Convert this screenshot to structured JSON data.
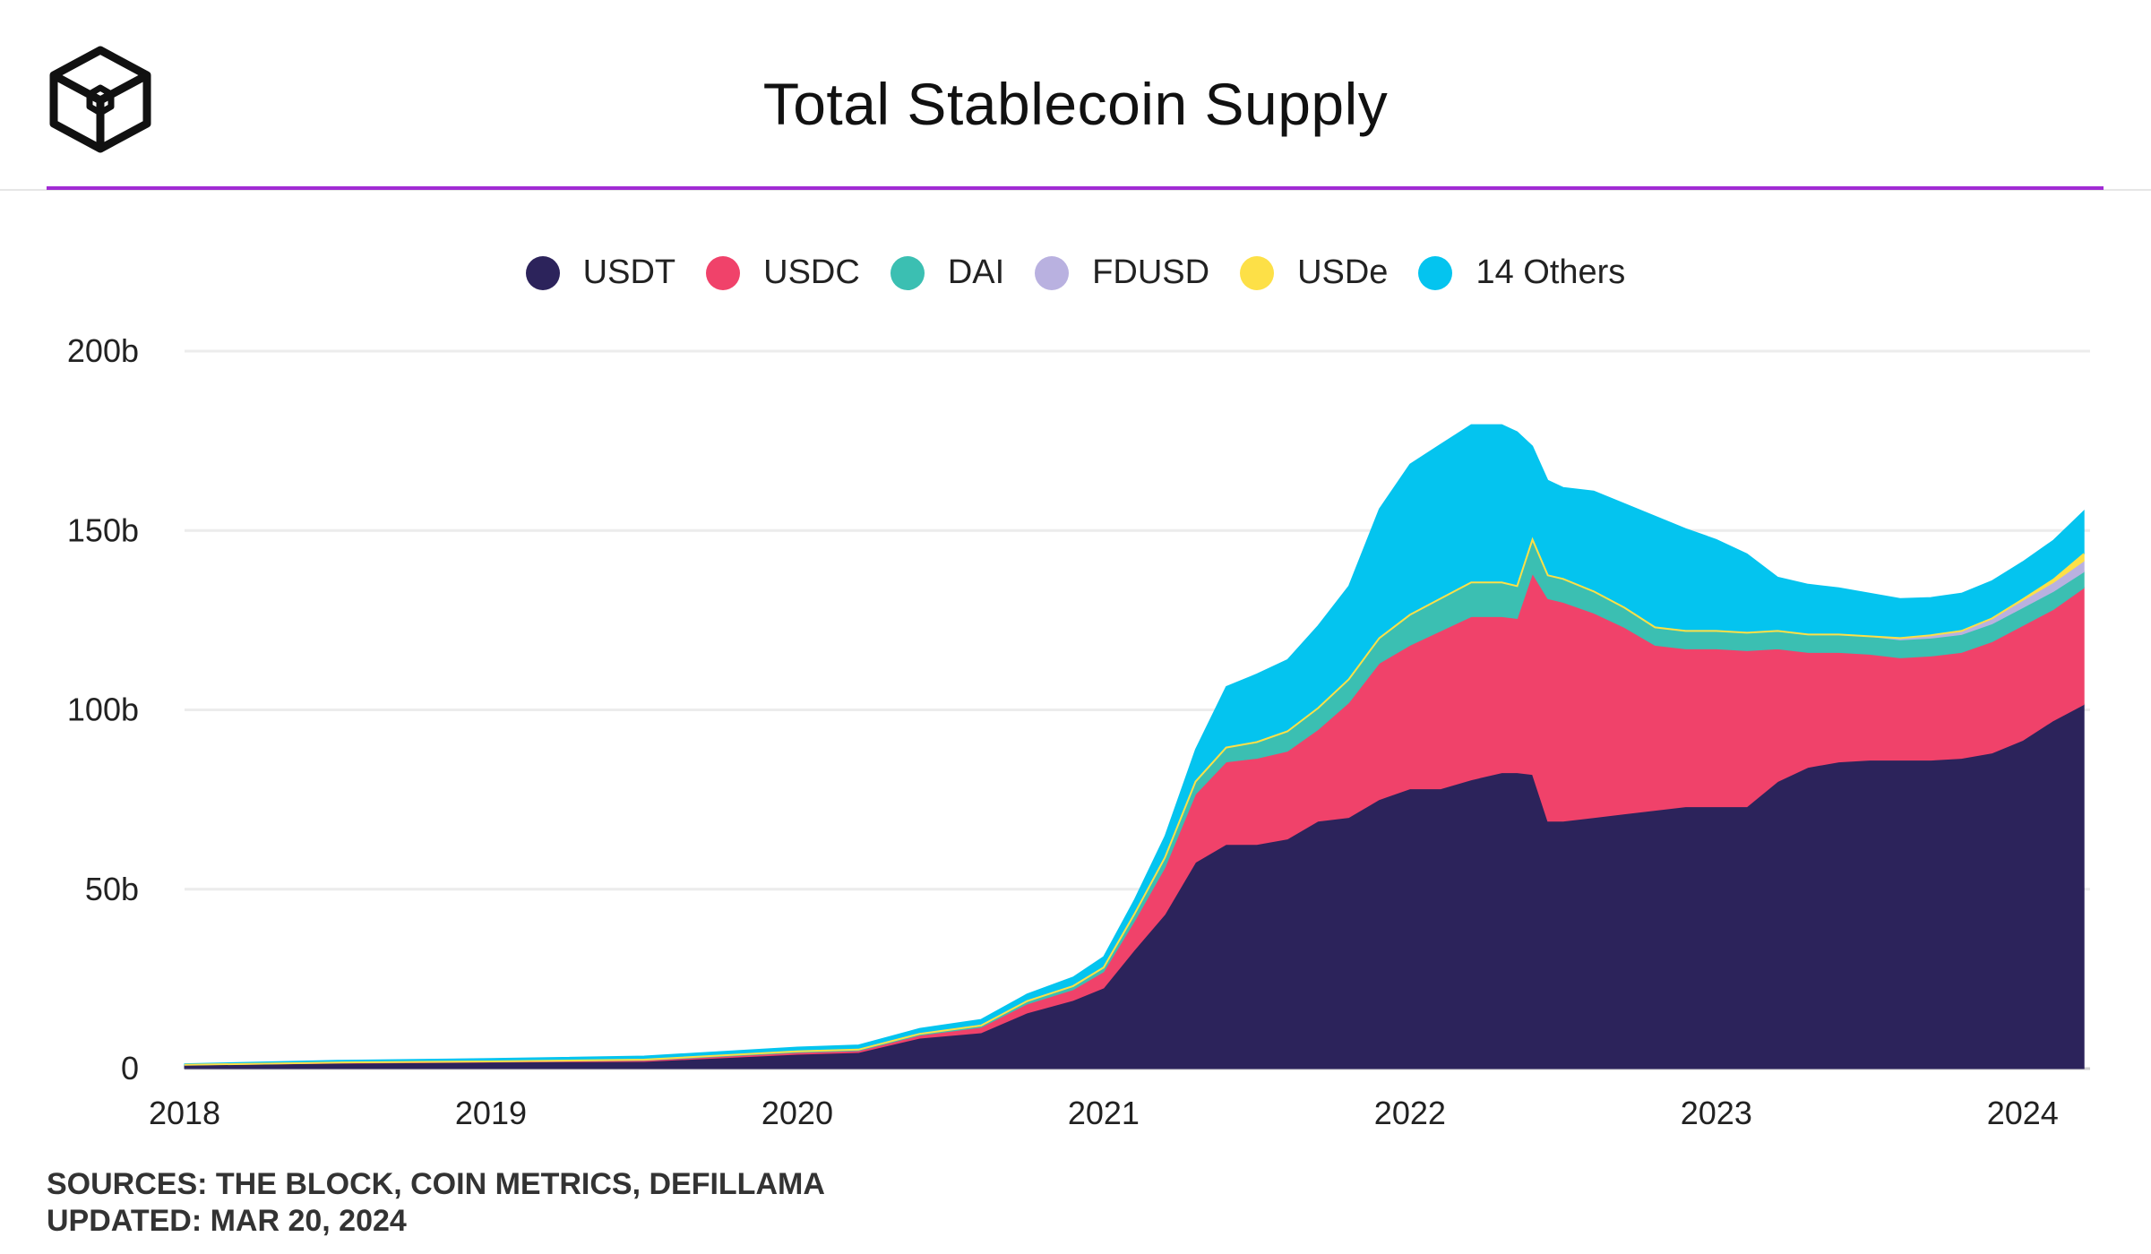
{
  "title": "Total Stablecoin Supply",
  "footer": {
    "sources": "SOURCES: THE BLOCK, COIN METRICS, DEFILLAMA",
    "updated": "UPDATED: MAR 20, 2024"
  },
  "colors": {
    "accent": "#a12bd4",
    "USDT": "#2c235b",
    "USDC": "#f0426a",
    "DAI": "#3bbfb2",
    "FDUSD": "#b9b1e0",
    "USDe": "#fde047",
    "Others": "#04c4ef"
  },
  "chart_data": {
    "type": "area",
    "stacked": true,
    "title": "Total Stablecoin Supply",
    "xlabel": "",
    "ylabel": "",
    "xlim": [
      2018.0,
      2024.22
    ],
    "ylim": [
      0,
      200
    ],
    "x_ticks": [
      {
        "value": 2018,
        "label": "2018"
      },
      {
        "value": 2019,
        "label": "2019"
      },
      {
        "value": 2020,
        "label": "2020"
      },
      {
        "value": 2021,
        "label": "2021"
      },
      {
        "value": 2022,
        "label": "2022"
      },
      {
        "value": 2023,
        "label": "2023"
      },
      {
        "value": 2024,
        "label": "2024"
      }
    ],
    "y_ticks": [
      {
        "value": 0,
        "label": "0"
      },
      {
        "value": 50,
        "label": "50b"
      },
      {
        "value": 100,
        "label": "100b"
      },
      {
        "value": 150,
        "label": "150b"
      },
      {
        "value": 200,
        "label": "200b"
      }
    ],
    "grid": true,
    "legend_position": "top-center",
    "x": [
      2018.0,
      2018.5,
      2019.0,
      2019.5,
      2020.0,
      2020.2,
      2020.4,
      2020.6,
      2020.75,
      2020.9,
      2021.0,
      2021.1,
      2021.2,
      2021.3,
      2021.4,
      2021.5,
      2021.6,
      2021.7,
      2021.8,
      2021.9,
      2022.0,
      2022.1,
      2022.2,
      2022.3,
      2022.35,
      2022.4,
      2022.45,
      2022.5,
      2022.6,
      2022.7,
      2022.8,
      2022.9,
      2023.0,
      2023.1,
      2023.2,
      2023.3,
      2023.4,
      2023.5,
      2023.6,
      2023.7,
      2023.8,
      2023.9,
      2024.0,
      2024.1,
      2024.2
    ],
    "series": [
      {
        "name": "USDT",
        "legend_label": "USDT",
        "values": [
          1.0,
          1.5,
          1.8,
          2.0,
          4.0,
          4.5,
          8.5,
          10.0,
          15.5,
          19.0,
          22.5,
          33.0,
          43.0,
          57.5,
          62.5,
          62.5,
          64.0,
          69.0,
          70.0,
          75.0,
          78.0,
          78.0,
          80.5,
          82.5,
          82.5,
          82.0,
          69.0,
          69.0,
          70.0,
          71.0,
          72.0,
          73.0,
          73.0,
          73.0,
          80.0,
          84.0,
          85.5,
          86.0,
          86.0,
          86.0,
          86.5,
          88.0,
          91.5,
          97.0,
          101.5
        ]
      },
      {
        "name": "USDC",
        "legend_label": "USDC",
        "values": [
          0.0,
          0.1,
          0.1,
          0.3,
          0.5,
          0.5,
          0.8,
          1.5,
          2.5,
          3.0,
          4.5,
          8.0,
          13.0,
          19.0,
          23.0,
          24.0,
          24.5,
          25.5,
          32.0,
          38.0,
          40.0,
          44.0,
          45.5,
          43.5,
          43.0,
          56.0,
          62.0,
          61.0,
          57.0,
          52.0,
          46.0,
          44.0,
          44.0,
          43.5,
          37.0,
          32.0,
          30.5,
          29.5,
          28.5,
          29.0,
          29.5,
          31.0,
          32.0,
          31.0,
          32.5
        ]
      },
      {
        "name": "DAI",
        "legend_label": "DAI",
        "values": [
          0.05,
          0.1,
          0.1,
          0.2,
          0.3,
          0.3,
          0.4,
          0.5,
          0.8,
          1.0,
          1.2,
          2.0,
          2.8,
          3.5,
          4.0,
          4.5,
          5.5,
          6.0,
          6.5,
          7.0,
          8.5,
          9.0,
          9.5,
          9.5,
          9.0,
          9.5,
          6.5,
          6.5,
          6.0,
          5.5,
          5.0,
          5.0,
          5.0,
          5.0,
          5.0,
          5.0,
          5.0,
          5.0,
          5.0,
          5.0,
          5.0,
          5.0,
          5.0,
          5.0,
          4.5
        ]
      },
      {
        "name": "FDUSD",
        "legend_label": "FDUSD",
        "values": [
          0,
          0,
          0,
          0,
          0,
          0,
          0,
          0,
          0,
          0,
          0,
          0,
          0,
          0,
          0,
          0,
          0,
          0,
          0,
          0,
          0,
          0,
          0,
          0,
          0,
          0,
          0,
          0,
          0,
          0,
          0,
          0,
          0,
          0,
          0,
          0,
          0,
          0,
          0.5,
          0.8,
          1.0,
          1.5,
          2.0,
          2.5,
          3.0
        ]
      },
      {
        "name": "USDe",
        "legend_label": "USDe",
        "values": [
          0,
          0,
          0,
          0,
          0,
          0,
          0,
          0,
          0,
          0,
          0,
          0,
          0,
          0,
          0,
          0,
          0,
          0,
          0,
          0,
          0,
          0,
          0,
          0,
          0,
          0,
          0,
          0,
          0,
          0,
          0,
          0,
          0,
          0,
          0,
          0,
          0,
          0,
          0,
          0,
          0,
          0,
          0.3,
          0.8,
          2.0
        ]
      },
      {
        "name": "Others",
        "legend_label": "14 Others",
        "values": [
          0.3,
          0.6,
          0.8,
          1.0,
          1.2,
          1.3,
          1.5,
          1.7,
          2.0,
          2.5,
          3.0,
          4.0,
          6.0,
          9.0,
          17.0,
          19.0,
          20.0,
          23.0,
          26.0,
          36.0,
          42.0,
          43.0,
          44.0,
          44.0,
          43.0,
          26.0,
          26.5,
          25.5,
          28.0,
          29.0,
          31.0,
          28.5,
          25.5,
          22.0,
          15.0,
          14.0,
          13.0,
          12.0,
          11.0,
          10.5,
          10.5,
          10.5,
          10.5,
          11.0,
          12.0
        ]
      }
    ]
  }
}
